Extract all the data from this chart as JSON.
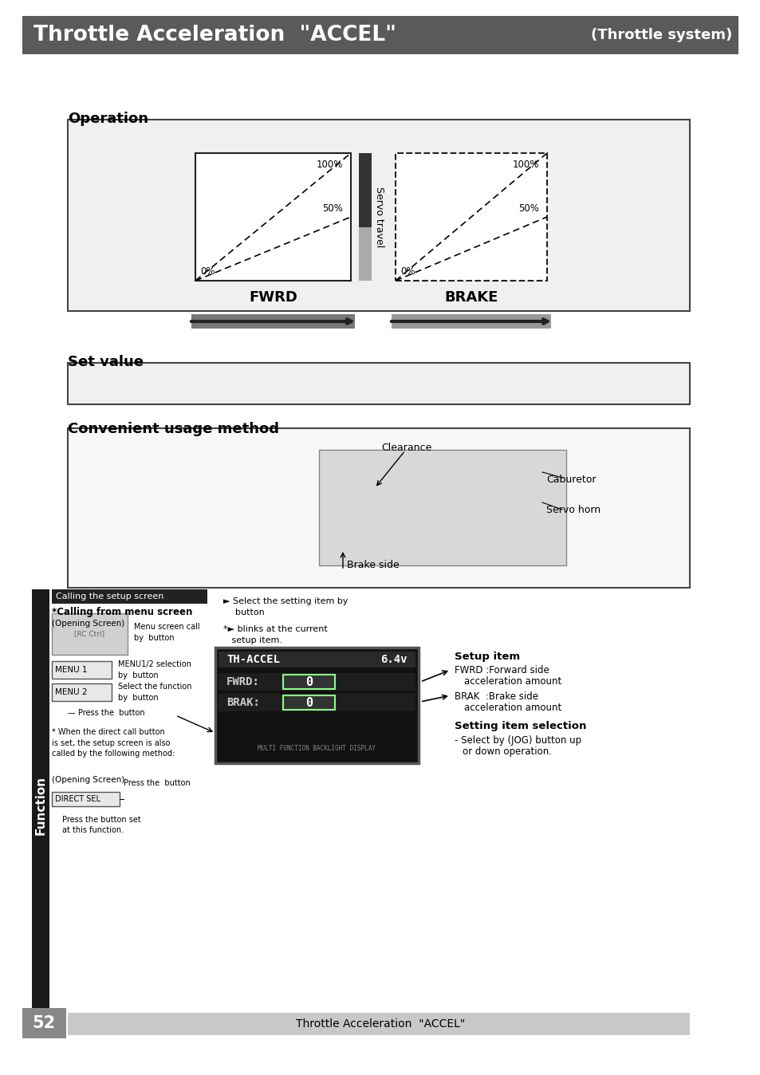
{
  "title_text": "Throttle Acceleration  \"ACCEL\"",
  "title_right": "(Throttle system)",
  "title_bg": "#5a5a5a",
  "title_fg": "#ffffff",
  "page_num": "52",
  "footer_text": "Throttle Acceleration  \"ACCEL\"",
  "footer_bg": "#c8c8c8",
  "bg": "#ffffff",
  "operation_label": "Operation",
  "set_value_label": "Set value",
  "convenient_label": "Convenient usage method",
  "fwrd_label": "FWRD",
  "brake_label": "BRAKE",
  "servo_travel_label": "Servo travel",
  "pct_100": "100%",
  "pct_50": "50%",
  "pct_0": "0%"
}
